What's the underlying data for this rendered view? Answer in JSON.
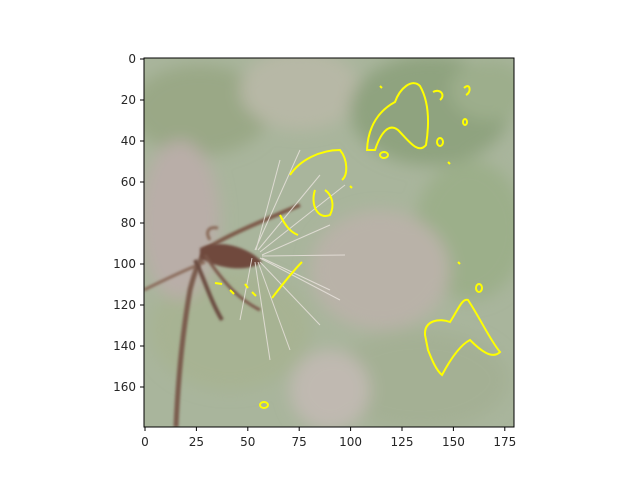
{
  "image": {
    "subject": "dried dandelion-like seed head on a thin stem with a blurred green background",
    "overlay_color": "#ffff00",
    "overlay": "yellow contour outlines marking regions"
  },
  "axes": {
    "x_ticks": [
      "0",
      "25",
      "50",
      "75",
      "100",
      "125",
      "150",
      "175"
    ],
    "y_ticks": [
      "0",
      "20",
      "40",
      "60",
      "80",
      "100",
      "120",
      "140",
      "160"
    ],
    "x_range": [
      0,
      180
    ],
    "y_range": [
      0,
      180
    ]
  }
}
